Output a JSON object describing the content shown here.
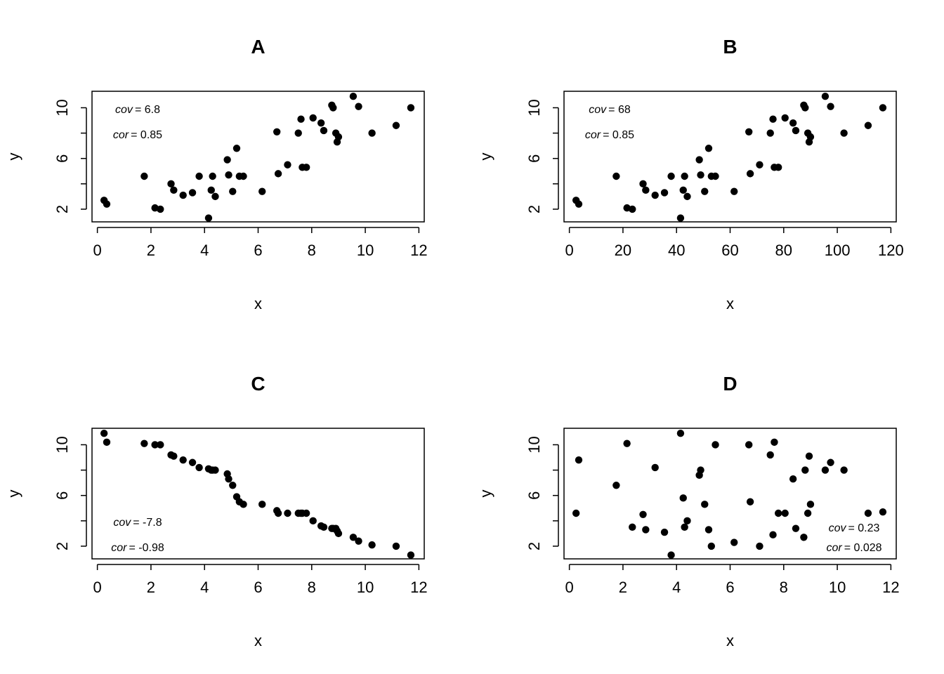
{
  "chart_data": [
    {
      "type": "scatter",
      "title": "A",
      "xlabel": "x",
      "ylabel": "y",
      "xlim": [
        -0.2,
        12.2
      ],
      "ylim": [
        1.0,
        11.3
      ],
      "xticks": [
        0,
        2,
        4,
        6,
        8,
        10,
        12
      ],
      "yticks": [
        2,
        6,
        10
      ],
      "ytick_marks": [
        2,
        4,
        6,
        8,
        10
      ],
      "annotations": {
        "cov_label": "cov",
        "cov_value": "= 6.8",
        "cor_label": "cor",
        "cor_value": "= 0.85",
        "placement": "top-left"
      },
      "x": [
        0.25,
        0.35,
        1.75,
        2.15,
        2.35,
        2.75,
        2.85,
        3.2,
        3.55,
        3.8,
        4.15,
        4.25,
        4.3,
        4.4,
        4.85,
        4.9,
        5.05,
        5.2,
        5.3,
        5.45,
        6.15,
        6.7,
        6.75,
        7.1,
        7.5,
        7.6,
        7.65,
        7.8,
        8.05,
        8.35,
        8.45,
        8.75,
        8.8,
        8.9,
        8.95,
        9.0,
        9.55,
        9.75,
        10.25,
        11.15,
        11.7
      ],
      "y": [
        2.7,
        2.4,
        4.6,
        2.1,
        2.0,
        4.0,
        3.5,
        3.1,
        3.3,
        4.6,
        1.3,
        3.5,
        4.6,
        3.0,
        5.9,
        4.7,
        3.4,
        6.8,
        4.6,
        4.6,
        3.4,
        8.1,
        4.8,
        5.5,
        8.0,
        9.1,
        5.3,
        5.3,
        9.2,
        8.8,
        8.2,
        10.2,
        10.0,
        8.0,
        7.3,
        7.7,
        10.9,
        10.1,
        8.0,
        8.6,
        10.0
      ]
    },
    {
      "type": "scatter",
      "title": "B",
      "xlabel": "x",
      "ylabel": "y",
      "xlim": [
        -2,
        122
      ],
      "ylim": [
        1.0,
        11.3
      ],
      "xticks": [
        0,
        20,
        40,
        60,
        80,
        100,
        120
      ],
      "yticks": [
        2,
        6,
        10
      ],
      "ytick_marks": [
        2,
        4,
        6,
        8,
        10
      ],
      "annotations": {
        "cov_label": "cov",
        "cov_value": "= 68",
        "cor_label": "cor",
        "cor_value": "= 0.85",
        "placement": "top-left"
      },
      "x": [
        2.5,
        3.5,
        17.5,
        21.5,
        23.5,
        27.5,
        28.5,
        32,
        35.5,
        38,
        41.5,
        42.5,
        43,
        44,
        48.5,
        49,
        50.5,
        52,
        53,
        54.5,
        61.5,
        67,
        67.5,
        71,
        75,
        76,
        76.5,
        78,
        80.5,
        83.5,
        84.5,
        87.5,
        88,
        89,
        89.5,
        90,
        95.5,
        97.5,
        102.5,
        111.5,
        117
      ],
      "y": [
        2.7,
        2.4,
        4.6,
        2.1,
        2.0,
        4.0,
        3.5,
        3.1,
        3.3,
        4.6,
        1.3,
        3.5,
        4.6,
        3.0,
        5.9,
        4.7,
        3.4,
        6.8,
        4.6,
        4.6,
        3.4,
        8.1,
        4.8,
        5.5,
        8.0,
        9.1,
        5.3,
        5.3,
        9.2,
        8.8,
        8.2,
        10.2,
        10.0,
        8.0,
        7.3,
        7.7,
        10.9,
        10.1,
        8.0,
        8.6,
        10.0
      ]
    },
    {
      "type": "scatter",
      "title": "C",
      "xlabel": "x",
      "ylabel": "y",
      "xlim": [
        -0.2,
        12.2
      ],
      "ylim": [
        1.0,
        11.3
      ],
      "xticks": [
        0,
        2,
        4,
        6,
        8,
        10,
        12
      ],
      "yticks": [
        2,
        6,
        10
      ],
      "ytick_marks": [
        2,
        4,
        6,
        8,
        10
      ],
      "annotations": {
        "cov_label": "cov",
        "cov_value": "= -7.8",
        "cor_label": "cor",
        "cor_value": "= -0.98",
        "placement": "bottom-left"
      },
      "x": [
        0.25,
        0.35,
        1.75,
        2.15,
        2.35,
        2.75,
        2.85,
        3.2,
        3.55,
        3.8,
        4.15,
        4.25,
        4.3,
        4.4,
        4.85,
        4.9,
        5.05,
        5.2,
        5.3,
        5.45,
        6.15,
        6.7,
        6.75,
        7.1,
        7.5,
        7.6,
        7.65,
        7.8,
        8.05,
        8.35,
        8.45,
        8.75,
        8.8,
        8.9,
        8.95,
        9.0,
        9.55,
        9.75,
        10.25,
        11.15,
        11.7
      ],
      "y": [
        10.9,
        10.2,
        10.1,
        10.0,
        10.0,
        9.2,
        9.1,
        8.8,
        8.6,
        8.2,
        8.1,
        8.0,
        8.0,
        8.0,
        7.7,
        7.3,
        6.8,
        5.9,
        5.5,
        5.3,
        5.3,
        4.8,
        4.6,
        4.6,
        4.6,
        4.6,
        4.6,
        4.6,
        4.0,
        3.6,
        3.5,
        3.4,
        3.4,
        3.4,
        3.2,
        3.0,
        2.7,
        2.4,
        2.1,
        2.0,
        1.3
      ]
    },
    {
      "type": "scatter",
      "title": "D",
      "xlabel": "x",
      "ylabel": "y",
      "xlim": [
        -0.2,
        12.2
      ],
      "ylim": [
        1.0,
        11.3
      ],
      "xticks": [
        0,
        2,
        4,
        6,
        8,
        10,
        12
      ],
      "yticks": [
        2,
        6,
        10
      ],
      "ytick_marks": [
        2,
        4,
        6,
        8,
        10
      ],
      "annotations": {
        "cov_label": "cov",
        "cov_value": "= 0.23",
        "cor_label": "cor",
        "cor_value": "= 0.028",
        "placement": "bottom-right"
      },
      "x": [
        0.25,
        0.35,
        1.75,
        2.15,
        2.35,
        2.75,
        2.85,
        3.2,
        3.55,
        3.8,
        4.15,
        4.25,
        4.3,
        4.4,
        4.85,
        4.9,
        5.05,
        5.2,
        5.3,
        5.45,
        6.15,
        6.7,
        6.75,
        7.1,
        7.5,
        7.6,
        7.65,
        7.8,
        8.05,
        8.35,
        8.45,
        8.75,
        8.8,
        8.9,
        8.95,
        9.0,
        9.55,
        9.75,
        10.25,
        11.15,
        11.7
      ],
      "y": [
        4.6,
        8.8,
        6.8,
        10.1,
        3.5,
        4.5,
        3.3,
        8.2,
        3.1,
        1.3,
        10.9,
        5.8,
        3.5,
        4.0,
        7.6,
        8.0,
        5.3,
        3.3,
        2.0,
        10.0,
        2.3,
        10.0,
        5.5,
        2.0,
        9.2,
        2.9,
        10.2,
        4.6,
        4.6,
        7.3,
        3.4,
        2.7,
        8.0,
        4.6,
        9.1,
        5.3,
        8.0,
        8.6,
        8.0,
        4.6,
        4.7
      ]
    }
  ]
}
